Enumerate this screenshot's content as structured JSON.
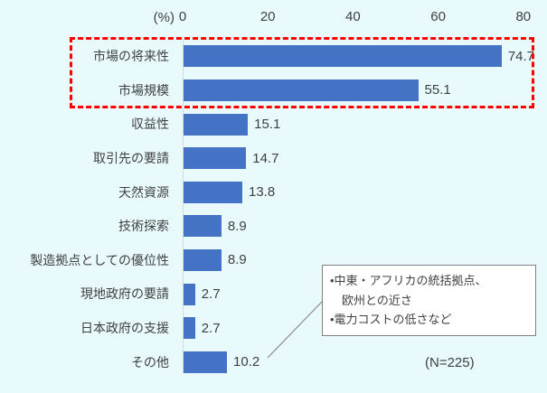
{
  "chart_data": {
    "type": "bar",
    "orientation": "horizontal",
    "title": "",
    "unit_label": "(%)",
    "x_ticks": [
      "0",
      "20",
      "40",
      "60",
      "80"
    ],
    "x_tick_values": [
      0,
      20,
      40,
      60,
      80
    ],
    "xlim": [
      0,
      85
    ],
    "grid": false,
    "legend_position": "none",
    "categories": [
      "市場の将来性",
      "市場規模",
      "収益性",
      "取引先の要請",
      "天然資源",
      "技術探索",
      "製造拠点としての優位性",
      "現地政府の要請",
      "日本政府の支援",
      "その他"
    ],
    "values": [
      74.7,
      55.1,
      15.1,
      14.7,
      13.8,
      8.9,
      8.9,
      2.7,
      2.7,
      10.2
    ],
    "value_labels": [
      "74.7",
      "55.1",
      "15.1",
      "14.7",
      "13.8",
      "8.9",
      "8.9",
      "2.7",
      "2.7",
      "10.2"
    ],
    "highlight_box": {
      "style": "red-dashed-rectangle",
      "enclosed_categories": [
        "市場の将来性",
        "市場規模"
      ]
    },
    "annotation": {
      "lines": [
        "•中東・アフリカの統括拠点、",
        "　欧州との近さ",
        "•電力コストの低さなど"
      ],
      "points_to": "その他"
    },
    "sample_size": "(N=225)",
    "colors": {
      "bar": "#4472C4",
      "background": "#E8FAFC",
      "text": "#404040",
      "axis_line": "#D9D9D9",
      "highlight_box": "#FF0000",
      "annotation_border": "#808080",
      "annotation_background": "#FFFFFF",
      "callout_line": "#8C8C8C"
    }
  }
}
